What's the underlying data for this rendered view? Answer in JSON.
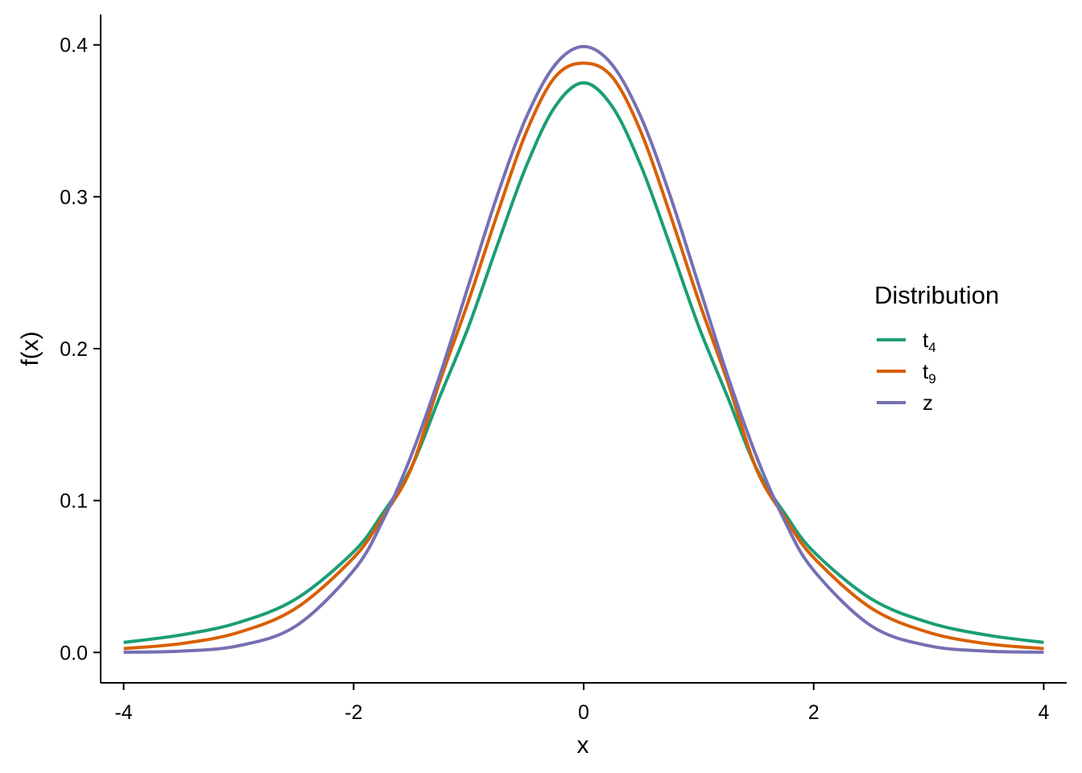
{
  "chart_data": {
    "type": "line",
    "xlabel": "x",
    "ylabel": "f(x)",
    "xlim": [
      -4.2,
      4.2
    ],
    "ylim": [
      -0.02,
      0.42
    ],
    "x_ticks": [
      -4,
      -2,
      0,
      2,
      4
    ],
    "x_tick_labels": [
      "-4",
      "-2",
      "0",
      "2",
      "4"
    ],
    "y_ticks": [
      0.0,
      0.1,
      0.2,
      0.3,
      0.4
    ],
    "y_tick_labels": [
      "0.0",
      "0.1",
      "0.2",
      "0.3",
      "0.4"
    ],
    "grid": false,
    "legend": {
      "title": "Distribution",
      "placement": "right",
      "entries": [
        {
          "base": "t",
          "sub": "4",
          "color": "#1B9E77"
        },
        {
          "base": "t",
          "sub": "9",
          "color": "#D95F02"
        },
        {
          "base": "z",
          "sub": "",
          "color": "#7570B3"
        }
      ]
    },
    "x": [
      -4.0,
      -3.5,
      -3.0,
      -2.5,
      -2.0,
      -1.75,
      -1.5,
      -1.25,
      -1.0,
      -0.75,
      -0.5,
      -0.25,
      0.0,
      0.25,
      0.5,
      0.75,
      1.0,
      1.25,
      1.5,
      1.75,
      2.0,
      2.5,
      3.0,
      3.5,
      4.0
    ],
    "series": [
      {
        "name": "t4",
        "color": "#1B9E77",
        "values": [
          0.0066,
          0.0115,
          0.0197,
          0.0353,
          0.0663,
          0.0913,
          0.1215,
          0.1685,
          0.2147,
          0.2683,
          0.32,
          0.3592,
          0.375,
          0.3592,
          0.32,
          0.2683,
          0.2147,
          0.1685,
          0.1215,
          0.0913,
          0.0663,
          0.0353,
          0.0197,
          0.0115,
          0.0066
        ]
      },
      {
        "name": "t9",
        "color": "#D95F02",
        "values": [
          0.0025,
          0.0058,
          0.0132,
          0.0292,
          0.0624,
          0.0888,
          0.121,
          0.1786,
          0.2316,
          0.2888,
          0.3423,
          0.3787,
          0.388,
          0.3787,
          0.3423,
          0.2888,
          0.2316,
          0.1786,
          0.121,
          0.0888,
          0.0624,
          0.0292,
          0.0132,
          0.0058,
          0.0025
        ]
      },
      {
        "name": "z",
        "color": "#7570B3",
        "values": [
          0.0001,
          0.0009,
          0.0044,
          0.0175,
          0.054,
          0.0863,
          0.1295,
          0.1826,
          0.242,
          0.3011,
          0.3521,
          0.3867,
          0.3989,
          0.3867,
          0.3521,
          0.3011,
          0.242,
          0.1826,
          0.1295,
          0.0863,
          0.054,
          0.0175,
          0.0044,
          0.0009,
          0.0001
        ]
      }
    ]
  }
}
